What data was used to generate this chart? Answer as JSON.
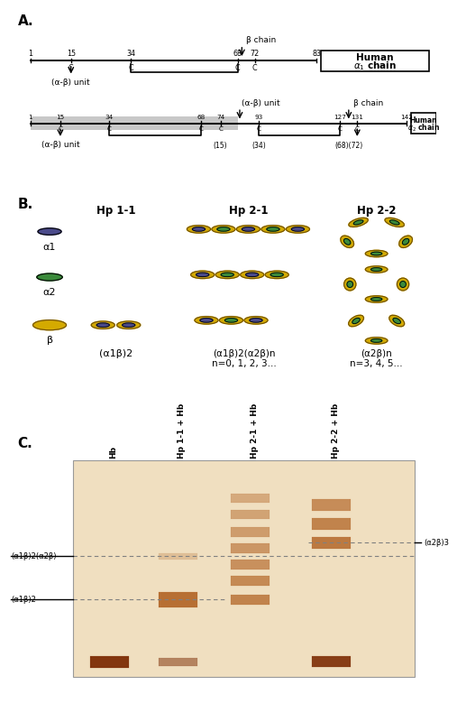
{
  "bg_color": "#ffffff",
  "section_A_label": "A.",
  "section_B_label": "B.",
  "section_C_label": "C.",
  "beta_chain_label": "β chain",
  "alphabeta_unit_label": "(α-β) unit",
  "hp11_label": "Hp 1-1",
  "hp21_label": "Hp 2-1",
  "hp22_label": "Hp 2-2",
  "alpha1_symbol": "α1",
  "alpha2_symbol": "α2",
  "beta_symbol": "β",
  "hp11_formula": "(α1β)2",
  "hp21_formula": "(α1β)2(α2β)n\nn=0, 1, 2, 3...",
  "hp22_formula": "(α2β)n\nn=3, 4, 5...",
  "gel_labels_top": [
    "Hb",
    "Hp 1-1 + Hb",
    "Hp 2-1 + Hb",
    "Hp 2-2 + Hb"
  ],
  "gel_band1_label": "(α1β)2(α2β)",
  "gel_band2_label": "(α1β)2",
  "gel_band3_label": "(α2β)3",
  "color_alpha1": "#4a4a8a",
  "color_alpha2": "#3a8a3a",
  "color_beta": "#d4aa00",
  "color_alpha1_inner": "#8888bb",
  "color_alpha2_inner": "#88bb88",
  "color_beta_inner": "#f0e080",
  "gel_bg": "#f0dfc0",
  "gel_band_hb": "#7a2800",
  "gel_band_hp": "#b06020"
}
